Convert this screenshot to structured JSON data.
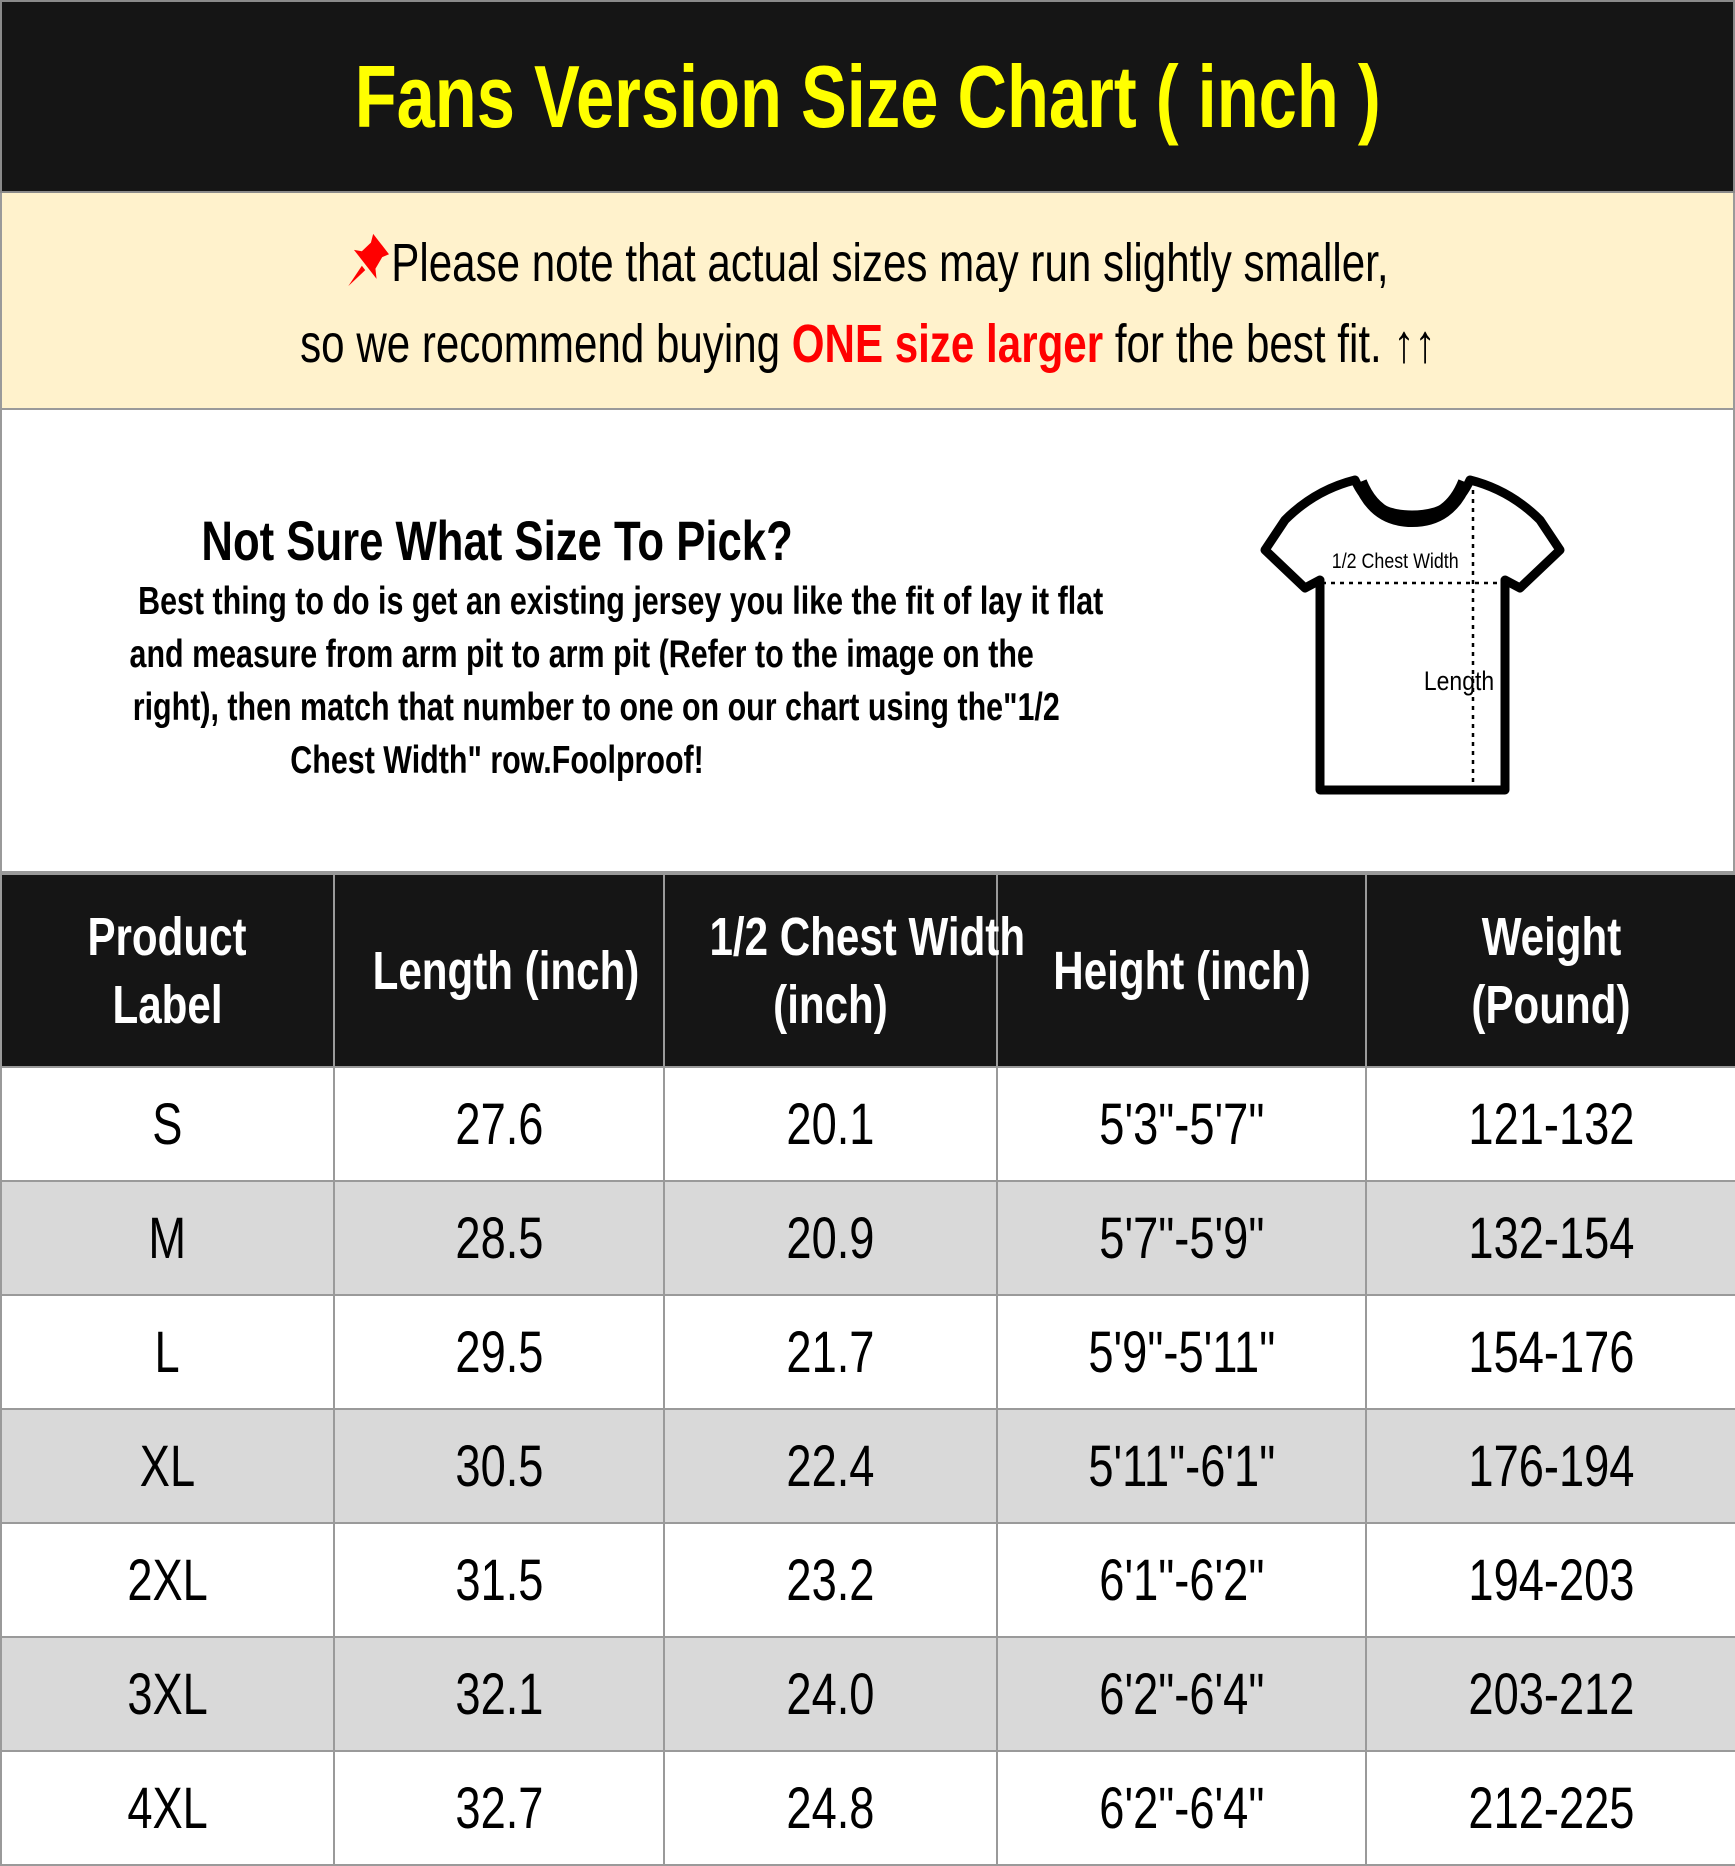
{
  "title": "Fans Version Size Chart ( inch )",
  "note": {
    "icon": "pushpin-icon",
    "line1": "Please note that actual sizes may run slightly smaller,",
    "line2_pre": "so we recommend buying ",
    "line2_highlight": "ONE size larger",
    "line2_post": " for the best fit. ↑↑",
    "highlight_color": "#ff0000"
  },
  "info": {
    "heading": "Not Sure What Size To Pick?",
    "lines": [
      "Best thing to do is get an existing jersey you like the fit of lay it flat",
      "and measure from arm pit to arm pit (Refer to the image on the",
      "right), then match that number to one on our chart using the\"1/2",
      "Chest Width\" row.Foolproof!"
    ],
    "diagram": {
      "chest_label": "1/2 Chest Width",
      "length_label": "Length"
    }
  },
  "table": {
    "headers": [
      [
        "Product",
        "Label"
      ],
      [
        "Length (inch)"
      ],
      [
        "1/2 Chest Width",
        "(inch)"
      ],
      [
        "Height (inch)"
      ],
      [
        "Weight",
        "(Pound)"
      ]
    ],
    "rows": [
      [
        "S",
        "27.6",
        "20.1",
        "5'3\"-5'7\"",
        "121-132"
      ],
      [
        "M",
        "28.5",
        "20.9",
        "5'7\"-5'9\"",
        "132-154"
      ],
      [
        "L",
        "29.5",
        "21.7",
        "5'9\"-5'11\"",
        "154-176"
      ],
      [
        "XL",
        "30.5",
        "22.4",
        "5'11\"-6'1\"",
        "176-194"
      ],
      [
        "2XL",
        "31.5",
        "23.2",
        "6'1\"-6'2\"",
        "194-203"
      ],
      [
        "3XL",
        "32.1",
        "24.0",
        "6'2\"-6'4\"",
        "203-212"
      ],
      [
        "4XL",
        "32.7",
        "24.8",
        "6'2\"-6'4\"",
        "212-225"
      ]
    ]
  },
  "colors": {
    "title_text": "#ffff00",
    "header_bg": "#151515",
    "note_bg": "#fff2cc",
    "alt_row": "#d9d9d9"
  }
}
